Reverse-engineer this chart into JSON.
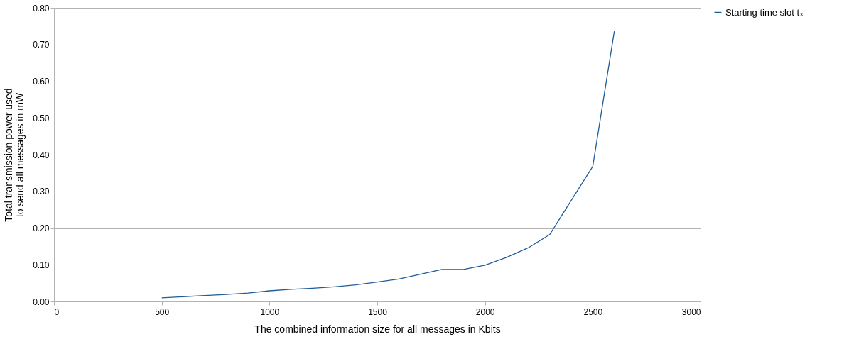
{
  "chart_data": {
    "type": "line",
    "xlabel": "The combined information size for all messages in Kbits",
    "ylabel": "Total transmission power used\nto send all messages in mW",
    "x": [
      500,
      600,
      700,
      800,
      900,
      1000,
      1100,
      1200,
      1300,
      1400,
      1500,
      1600,
      1700,
      1800,
      1900,
      2000,
      2100,
      2200,
      2300,
      2400,
      2500,
      2600
    ],
    "series": [
      {
        "name": "Starting time slot t₃",
        "color": "#1f5c99",
        "values": [
          0.01,
          0.013,
          0.016,
          0.019,
          0.023,
          0.029,
          0.033,
          0.036,
          0.04,
          0.045,
          0.053,
          0.061,
          0.074,
          0.087,
          0.087,
          0.099,
          0.12,
          0.146,
          0.182,
          0.275,
          0.368,
          0.736
        ]
      }
    ],
    "xlim": [
      0,
      3000
    ],
    "xticks": [
      0,
      500,
      1000,
      1500,
      2000,
      2500,
      3000
    ],
    "ylim": [
      0,
      0.8
    ],
    "yticks": [
      {
        "value": 0,
        "label": "0.00"
      },
      {
        "value": 0.1,
        "label": "0.10"
      },
      {
        "value": 0.2,
        "label": "0.20"
      },
      {
        "value": 0.3,
        "label": "0.30"
      },
      {
        "value": 0.4,
        "label": "0.40"
      },
      {
        "value": 0.5,
        "label": "0.50"
      },
      {
        "value": 0.6,
        "label": "0.60"
      },
      {
        "value": 0.7,
        "label": "0.70"
      },
      {
        "value": 0.8,
        "label": "0.80"
      }
    ],
    "grid": "y",
    "legend": "right",
    "marker": "none",
    "line_style": "solid"
  }
}
